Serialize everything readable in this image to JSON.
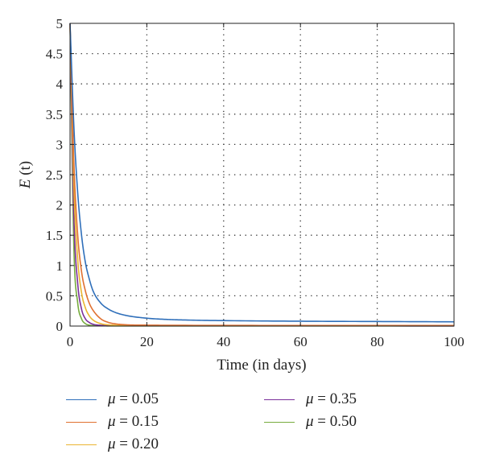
{
  "chart_data": {
    "type": "line",
    "xlabel": "Time (in days)",
    "ylabel": "E (t)",
    "xlim": [
      0,
      100
    ],
    "ylim": [
      0,
      5
    ],
    "x_ticks": [
      "0",
      "20",
      "40",
      "60",
      "80",
      "100"
    ],
    "y_ticks": [
      "0",
      "0.5",
      "1",
      "1.5",
      "2",
      "2.5",
      "3",
      "3.5",
      "4",
      "4.5",
      "5"
    ],
    "grid": true,
    "grid_style": "dotted",
    "legend_position": "below",
    "series": [
      {
        "name": "μ = 0.05",
        "color": "#2f6fba",
        "x": [
          0,
          1,
          2,
          3,
          4,
          5,
          6,
          8,
          10,
          12,
          15,
          20,
          25,
          30,
          40,
          60,
          80,
          100
        ],
        "y": [
          5,
          3.3,
          2.2,
          1.5,
          1.05,
          0.78,
          0.58,
          0.38,
          0.28,
          0.22,
          0.17,
          0.13,
          0.11,
          0.1,
          0.09,
          0.08,
          0.075,
          0.07
        ]
      },
      {
        "name": "μ = 0.15",
        "color": "#e07030",
        "x": [
          0,
          1,
          2,
          3,
          4,
          5,
          6,
          8,
          10,
          12,
          15,
          20,
          30,
          60,
          100
        ],
        "y": [
          5,
          2.7,
          1.5,
          0.9,
          0.58,
          0.38,
          0.26,
          0.12,
          0.06,
          0.035,
          0.02,
          0.015,
          0.012,
          0.01,
          0.01
        ]
      },
      {
        "name": "μ = 0.20",
        "color": "#eab531",
        "x": [
          0,
          1,
          2,
          3,
          4,
          5,
          6,
          8,
          10,
          15,
          20,
          60,
          100
        ],
        "y": [
          5,
          2.3,
          1.1,
          0.55,
          0.3,
          0.17,
          0.1,
          0.04,
          0.02,
          0.01,
          0.008,
          0.006,
          0.005
        ]
      },
      {
        "name": "μ = 0.35",
        "color": "#7b2f9b",
        "x": [
          0,
          1,
          2,
          3,
          4,
          5,
          6,
          8,
          10,
          20,
          100
        ],
        "y": [
          5,
          1.8,
          0.7,
          0.28,
          0.12,
          0.06,
          0.03,
          0.012,
          0.006,
          0.004,
          0.003
        ]
      },
      {
        "name": "μ = 0.50",
        "color": "#77ac3e",
        "x": [
          0,
          1,
          2,
          3,
          4,
          5,
          6,
          8,
          10,
          20,
          100
        ],
        "y": [
          5,
          1.3,
          0.38,
          0.12,
          0.04,
          0.015,
          0.008,
          0.004,
          0.003,
          0.002,
          0.002
        ]
      }
    ]
  }
}
